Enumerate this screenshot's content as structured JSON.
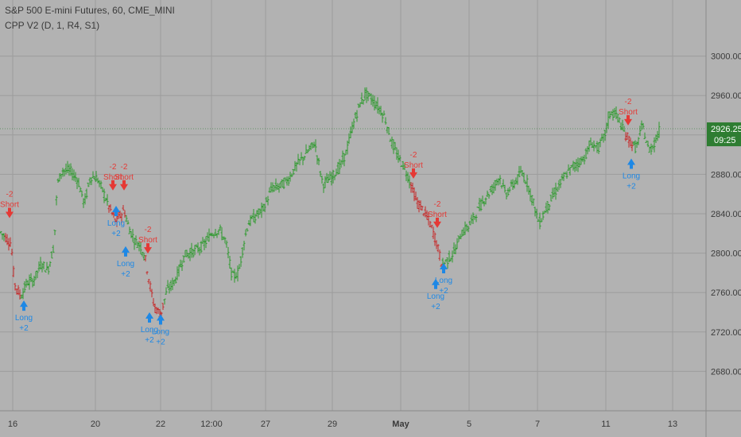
{
  "chart_data": {
    "type": "ohlc",
    "title": "S&P 500 E-mini Futures, 60, CME_MINI",
    "indicator": "CPP V2 (D, 1, R4, S1)",
    "ylim": [
      2640,
      3040
    ],
    "y_ticks": [
      "3000.00",
      "2960.00",
      "2920.00",
      "2880.00",
      "2840.00",
      "2800.00",
      "2760.00",
      "2720.00",
      "2680.00"
    ],
    "x_ticks": [
      "16",
      "20",
      "22",
      "12:00",
      "27",
      "29",
      "May",
      "5",
      "7",
      "11",
      "13"
    ],
    "last_price": "2926.25",
    "countdown": "09:25",
    "grid": true,
    "colors": {
      "background": "#b2b2b2",
      "grid": "#9c9c9c",
      "axis_text": "#3a3a3a",
      "bar_normal": "#2e9a2e",
      "bar_short_zone": "#c62828",
      "short_signal": "#e53935",
      "long_signal": "#1e88e5",
      "price_label_bg": "#2e7d32"
    },
    "price_path": [
      [
        0,
        2822
      ],
      [
        14,
        2810
      ],
      [
        18,
        2770
      ],
      [
        26,
        2756
      ],
      [
        34,
        2770
      ],
      [
        42,
        2772
      ],
      [
        52,
        2790
      ],
      [
        60,
        2782
      ],
      [
        68,
        2808
      ],
      [
        72,
        2870
      ],
      [
        78,
        2884
      ],
      [
        88,
        2884
      ],
      [
        98,
        2874
      ],
      [
        106,
        2850
      ],
      [
        114,
        2878
      ],
      [
        122,
        2876
      ],
      [
        130,
        2862
      ],
      [
        138,
        2845
      ],
      [
        146,
        2832
      ],
      [
        156,
        2844
      ],
      [
        162,
        2826
      ],
      [
        170,
        2812
      ],
      [
        176,
        2808
      ],
      [
        182,
        2798
      ],
      [
        188,
        2770
      ],
      [
        194,
        2746
      ],
      [
        202,
        2738
      ],
      [
        210,
        2762
      ],
      [
        220,
        2772
      ],
      [
        232,
        2798
      ],
      [
        244,
        2802
      ],
      [
        256,
        2808
      ],
      [
        266,
        2820
      ],
      [
        276,
        2824
      ],
      [
        284,
        2812
      ],
      [
        292,
        2776
      ],
      [
        300,
        2780
      ],
      [
        306,
        2808
      ],
      [
        312,
        2830
      ],
      [
        322,
        2838
      ],
      [
        332,
        2846
      ],
      [
        342,
        2866
      ],
      [
        352,
        2868
      ],
      [
        362,
        2874
      ],
      [
        372,
        2888
      ],
      [
        384,
        2900
      ],
      [
        396,
        2912
      ],
      [
        406,
        2870
      ],
      [
        416,
        2876
      ],
      [
        428,
        2888
      ],
      [
        436,
        2904
      ],
      [
        444,
        2930
      ],
      [
        452,
        2950
      ],
      [
        460,
        2962
      ],
      [
        468,
        2956
      ],
      [
        476,
        2948
      ],
      [
        484,
        2938
      ],
      [
        492,
        2914
      ],
      [
        500,
        2898
      ],
      [
        508,
        2888
      ],
      [
        516,
        2872
      ],
      [
        524,
        2852
      ],
      [
        532,
        2844
      ],
      [
        540,
        2832
      ],
      [
        548,
        2814
      ],
      [
        556,
        2788
      ],
      [
        564,
        2794
      ],
      [
        572,
        2802
      ],
      [
        580,
        2820
      ],
      [
        590,
        2828
      ],
      [
        600,
        2842
      ],
      [
        610,
        2856
      ],
      [
        620,
        2866
      ],
      [
        628,
        2878
      ],
      [
        636,
        2860
      ],
      [
        646,
        2870
      ],
      [
        656,
        2882
      ],
      [
        664,
        2870
      ],
      [
        672,
        2848
      ],
      [
        678,
        2830
      ],
      [
        686,
        2844
      ],
      [
        694,
        2856
      ],
      [
        704,
        2870
      ],
      [
        714,
        2882
      ],
      [
        724,
        2890
      ],
      [
        734,
        2896
      ],
      [
        744,
        2912
      ],
      [
        752,
        2906
      ],
      [
        760,
        2918
      ],
      [
        768,
        2944
      ],
      [
        776,
        2940
      ],
      [
        784,
        2924
      ],
      [
        792,
        2914
      ],
      [
        800,
        2906
      ],
      [
        808,
        2930
      ],
      [
        816,
        2904
      ],
      [
        822,
        2910
      ],
      [
        830,
        2926
      ]
    ],
    "short_zones": [
      [
        6,
        26
      ],
      [
        136,
        158
      ],
      [
        182,
        206
      ],
      [
        516,
        556
      ],
      [
        786,
        796
      ]
    ],
    "signals": [
      {
        "kind": "short",
        "lines": [
          "-2",
          "Short"
        ],
        "x": 12,
        "y": 2838
      },
      {
        "kind": "short",
        "lines": [
          "-2",
          "Short"
        ],
        "x": 142,
        "y": 2866
      },
      {
        "kind": "short",
        "lines": [
          "-2",
          "Short"
        ],
        "x": 156,
        "y": 2866
      },
      {
        "kind": "short",
        "lines": [
          "-2",
          "Short"
        ],
        "x": 186,
        "y": 2802
      },
      {
        "kind": "short",
        "lines": [
          "-2",
          "Short"
        ],
        "x": 520,
        "y": 2878
      },
      {
        "kind": "short",
        "lines": [
          "-2",
          "Short"
        ],
        "x": 550,
        "y": 2828
      },
      {
        "kind": "short",
        "lines": [
          "-2",
          "Short"
        ],
        "x": 790,
        "y": 2932
      },
      {
        "kind": "long",
        "lines": [
          "Long",
          "+2"
        ],
        "x": 30,
        "y": 2748
      },
      {
        "kind": "long",
        "lines": [
          "Long",
          "+2"
        ],
        "x": 146,
        "y": 2844
      },
      {
        "kind": "long",
        "lines": [
          "Long",
          "+2"
        ],
        "x": 158,
        "y": 2803
      },
      {
        "kind": "long",
        "lines": [
          "Long",
          "+2"
        ],
        "x": 188,
        "y": 2736
      },
      {
        "kind": "long",
        "lines": [
          "Long",
          "+2"
        ],
        "x": 202,
        "y": 2734
      },
      {
        "kind": "long",
        "lines": [
          "Long",
          "+2"
        ],
        "x": 548,
        "y": 2770
      },
      {
        "kind": "long",
        "lines": [
          "Long",
          "+2"
        ],
        "x": 558,
        "y": 2786
      },
      {
        "kind": "long",
        "lines": [
          "Long",
          "+2"
        ],
        "x": 794,
        "y": 2892
      }
    ]
  }
}
